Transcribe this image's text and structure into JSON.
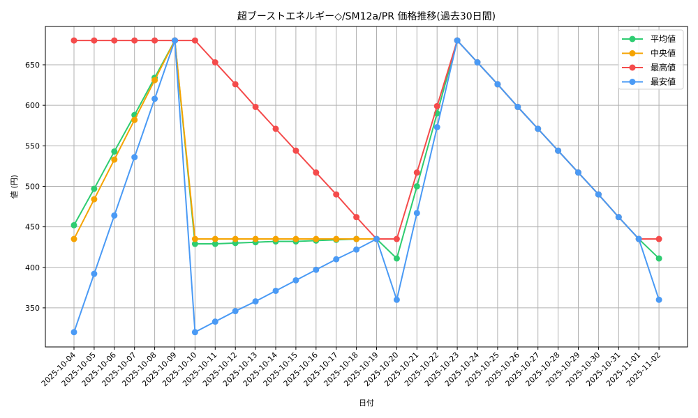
{
  "chart_data": {
    "type": "line",
    "title": "超ブーストエネルギー◇/SM12a/PR 価格推移(過去30日間)",
    "xlabel": "日付",
    "ylabel": "値 (円)",
    "ylim": [
      303,
      692
    ],
    "yticks": [
      350,
      400,
      450,
      500,
      550,
      600,
      650
    ],
    "grid": true,
    "legend_position": "upper right",
    "x": [
      "2025-10-04",
      "2025-10-05",
      "2025-10-06",
      "2025-10-07",
      "2025-10-08",
      "2025-10-09",
      "2025-10-10",
      "2025-10-11",
      "2025-10-12",
      "2025-10-13",
      "2025-10-14",
      "2025-10-15",
      "2025-10-16",
      "2025-10-17",
      "2025-10-18",
      "2025-10-19",
      "2025-10-20",
      "2025-10-21",
      "2025-10-22",
      "2025-10-23",
      "2025-10-24",
      "2025-10-25",
      "2025-10-26",
      "2025-10-27",
      "2025-10-28",
      "2025-10-29",
      "2025-10-30",
      "2025-10-31",
      "2025-11-01",
      "2025-11-02"
    ],
    "series": [
      {
        "name": "平均値",
        "color": "#2ecc71",
        "values": [
          452,
          497,
          543,
          588,
          634,
          680,
          429,
          429,
          430,
          431,
          432,
          432,
          433,
          434,
          435,
          435,
          411,
          500,
          590,
          680,
          653,
          626,
          598,
          571,
          544,
          517,
          490,
          462,
          435,
          411
        ]
      },
      {
        "name": "中央値",
        "color": "#f5a300",
        "values": [
          435,
          484,
          533,
          582,
          631,
          680,
          435,
          435,
          435,
          435,
          435,
          435,
          435,
          435,
          435,
          435,
          null,
          null,
          null,
          null,
          null,
          null,
          null,
          null,
          null,
          null,
          null,
          null,
          null,
          null
        ]
      },
      {
        "name": "最高値",
        "color": "#f44b4b",
        "values": [
          680,
          680,
          680,
          680,
          680,
          680,
          680,
          653,
          626,
          598,
          571,
          544,
          517,
          490,
          462,
          435,
          435,
          517,
          599,
          680,
          653,
          626,
          598,
          571,
          544,
          517,
          490,
          462,
          435,
          435
        ]
      },
      {
        "name": "最安値",
        "color": "#4a9af5",
        "values": [
          320,
          392,
          464,
          536,
          608,
          680,
          320,
          333,
          346,
          358,
          371,
          384,
          397,
          410,
          422,
          435,
          360,
          467,
          573,
          680,
          653,
          626,
          598,
          571,
          544,
          517,
          490,
          462,
          435,
          360
        ]
      }
    ]
  }
}
